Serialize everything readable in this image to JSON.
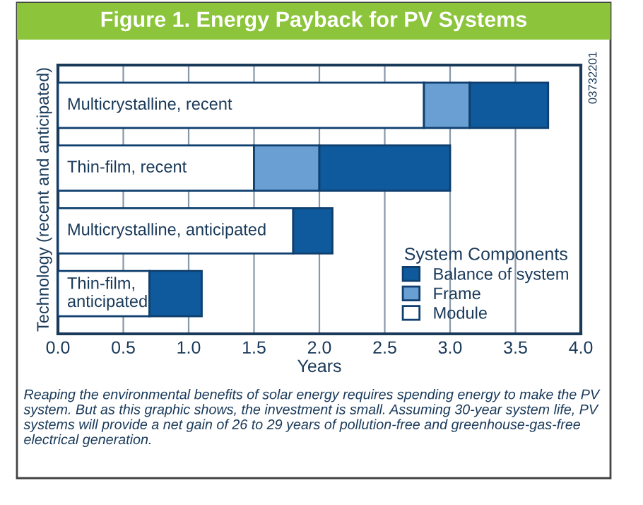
{
  "chart_data": {
    "type": "bar",
    "orientation": "horizontal",
    "stacked": true,
    "title": "Figure 1. Energy Payback for PV Systems",
    "categories": [
      "Multicrystalline, recent",
      "Thin-film, recent",
      "Multicrystalline, anticipated",
      "Thin-film,\nanticipated"
    ],
    "series": [
      {
        "name": "Module",
        "color": "#ffffff",
        "values": [
          2.8,
          1.5,
          1.8,
          0.7
        ]
      },
      {
        "name": "Frame",
        "color": "#6a9fd4",
        "values": [
          0.35,
          0.5,
          null,
          null
        ]
      },
      {
        "name": "Balance of system",
        "color": "#0f5a9c",
        "values": [
          0.6,
          1.0,
          0.3,
          0.4
        ]
      }
    ],
    "xlabel": "Years",
    "ylabel": "Technology (recent and anticipated)",
    "xlim": [
      0,
      4
    ],
    "xticks": [
      {
        "value": 0,
        "label": "0.0"
      },
      {
        "value": 0.5,
        "label": "0.5"
      },
      {
        "value": 1,
        "label": "1.0"
      },
      {
        "value": 1.5,
        "label": "1.5"
      },
      {
        "value": 2,
        "label": "2.0"
      },
      {
        "value": 2.5,
        "label": "2.5"
      },
      {
        "value": 3,
        "label": "3.0"
      },
      {
        "value": 3.5,
        "label": "3.5"
      },
      {
        "value": 4,
        "label": "4.0"
      }
    ],
    "tick_labels": "x",
    "grid": "x",
    "legend": "bottom right",
    "legend_title": "System Components",
    "annotations": [
      "03732201",
      "Reaping the environmental benefits of solar energy requires spending energy to make the PV system. But as this graphic shows, the investment is small. Assuming 30-year system life, PV systems will provide a net gain of 26 to 29 years of pollution-free and greenhouse-gas-free electrical generation."
    ]
  }
}
